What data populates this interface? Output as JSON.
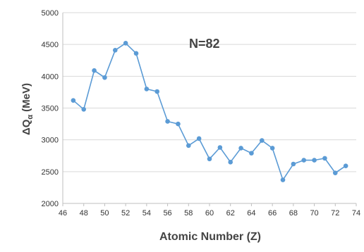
{
  "chart_data": {
    "type": "line",
    "title": "",
    "xlabel": "Atomic Number (Z)",
    "ylabel_main": "ΔQ",
    "ylabel_sub": "α",
    "ylabel_unit": "(MeV)",
    "annotation": "N=82",
    "xlim": [
      46,
      74
    ],
    "ylim": [
      2000,
      5000
    ],
    "x_ticks": [
      46,
      48,
      50,
      52,
      54,
      56,
      58,
      60,
      62,
      64,
      66,
      68,
      70,
      72,
      74
    ],
    "y_ticks": [
      2000,
      2500,
      3000,
      3500,
      4000,
      4500,
      5000
    ],
    "grid": "horizontal",
    "series_color": "#5b9bd5",
    "x": [
      47,
      48,
      49,
      50,
      51,
      52,
      53,
      54,
      55,
      56,
      57,
      58,
      59,
      60,
      61,
      62,
      63,
      64,
      65,
      66,
      67,
      68,
      69,
      70,
      71,
      72,
      73
    ],
    "values": [
      3620,
      3480,
      4090,
      3980,
      4410,
      4520,
      4360,
      3800,
      3760,
      3290,
      3250,
      2910,
      3020,
      2700,
      2880,
      2650,
      2870,
      2790,
      2990,
      2870,
      2370,
      2620,
      2680,
      2680,
      2710,
      2480,
      2590
    ]
  }
}
